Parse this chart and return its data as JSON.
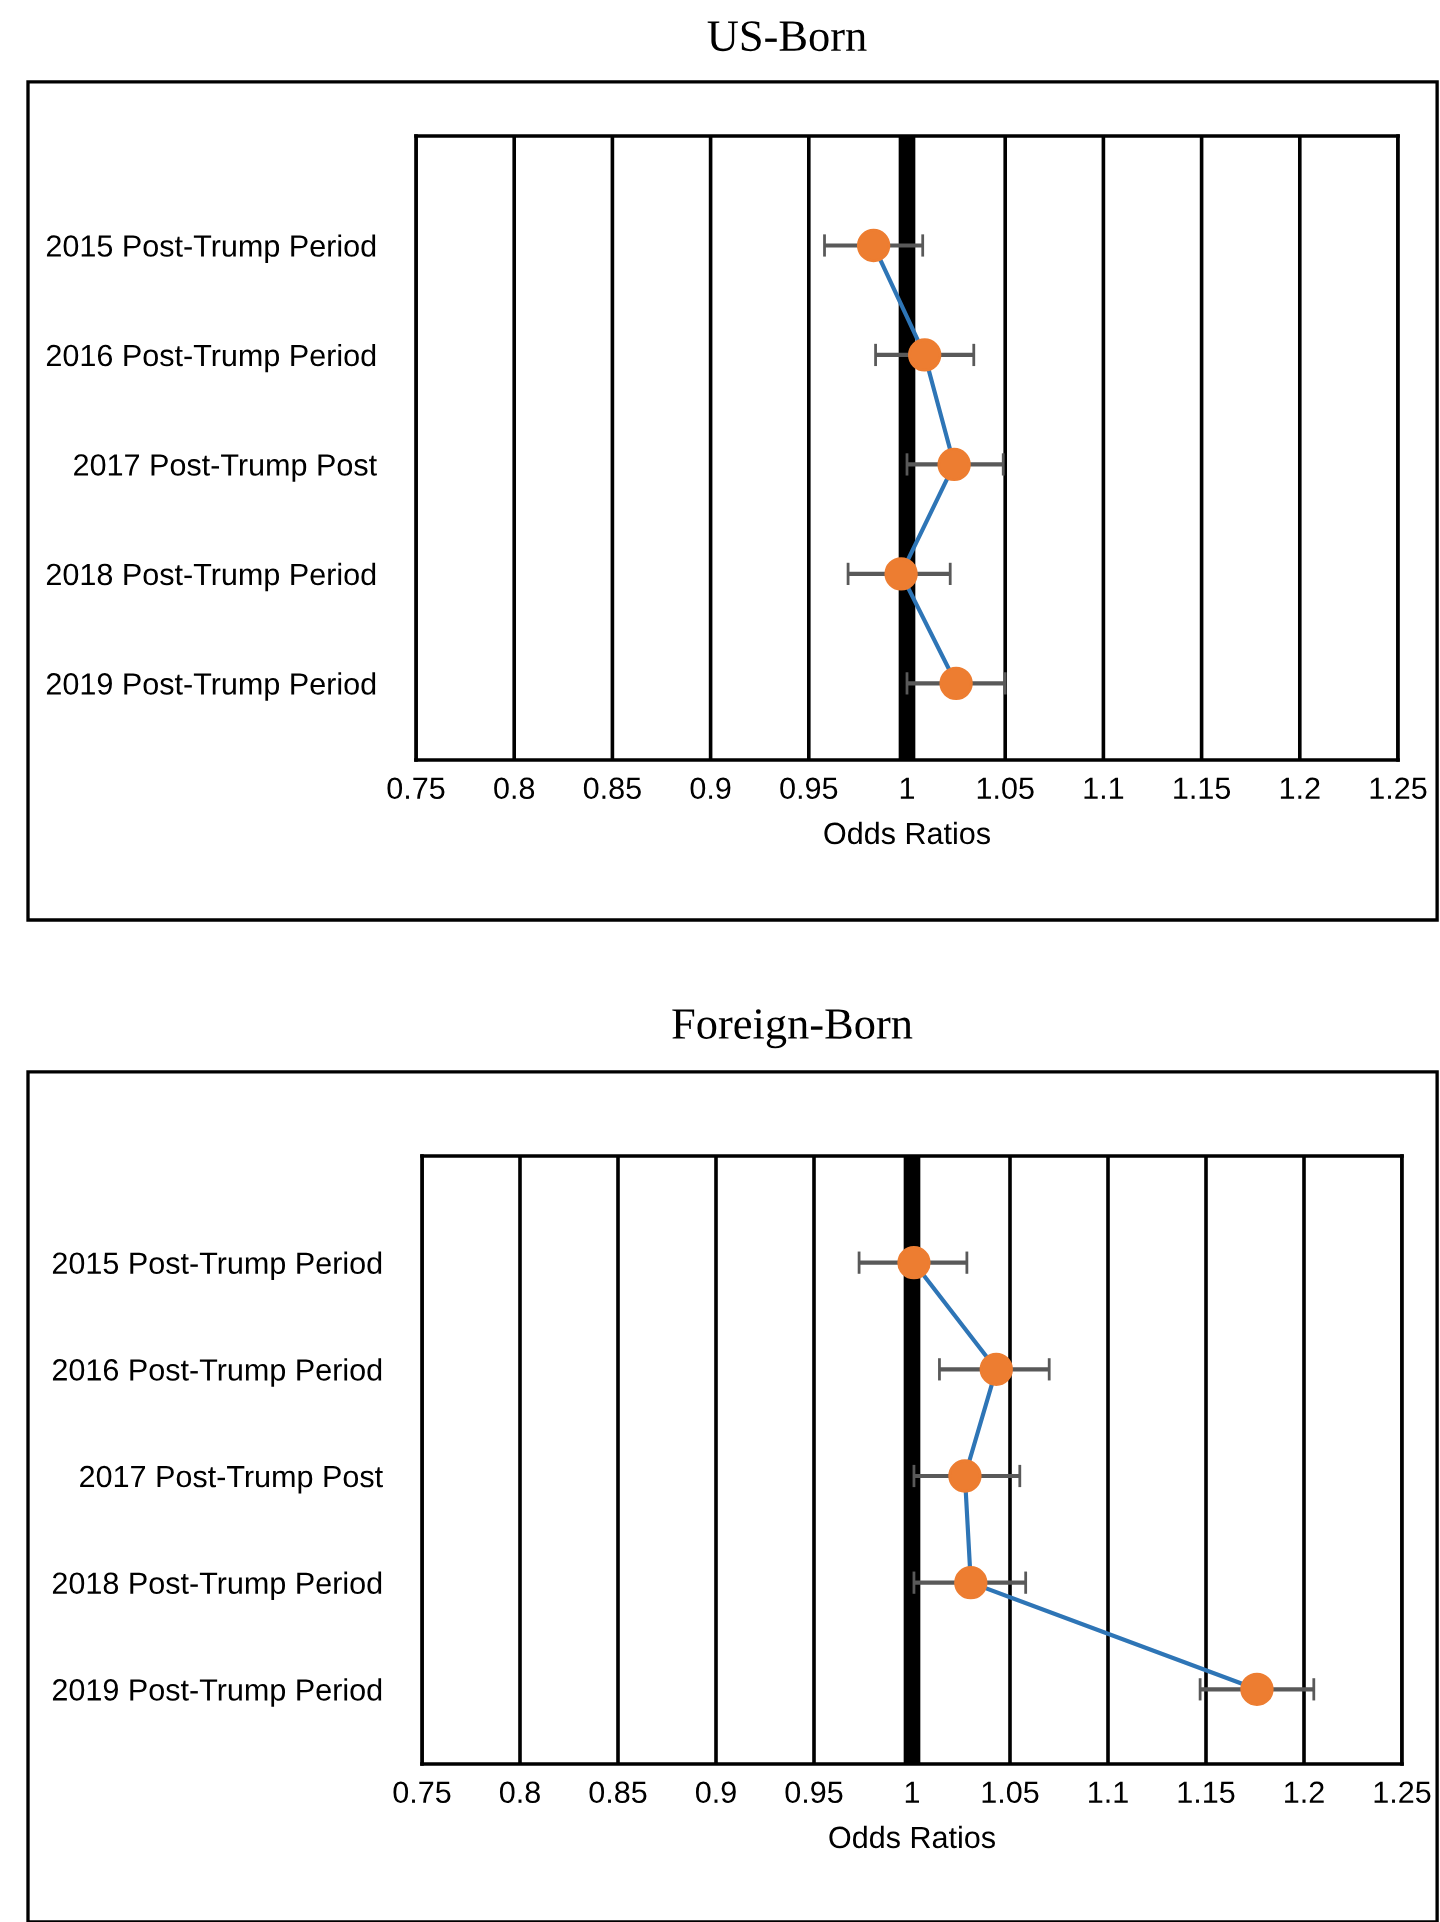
{
  "chart_data": [
    {
      "type": "line",
      "title": "US-Born",
      "xlabel": "Odds Ratios",
      "orientation": "horizontal",
      "categories": [
        "2015 Post-Trump Period",
        "2016 Post-Trump Period",
        "2017 Post-Trump Post",
        "2018 Post-Trump Period",
        "2019 Post-Trump Period"
      ],
      "series": [
        {
          "color": "#2e75b6",
          "colors": [
            "#ed7d31",
            "#ed7d31",
            "#ed7d31",
            "#ed7d31",
            "#ed7d31"
          ],
          "values": [
            0.983,
            1.009,
            1.024,
            0.997,
            1.025
          ],
          "errors": [
            [
              0.958,
              1.008
            ],
            [
              0.984,
              1.034
            ],
            [
              1.0,
              1.049
            ],
            [
              0.97,
              1.022
            ],
            [
              1.0,
              1.05
            ]
          ]
        }
      ],
      "xlim": [
        0.75,
        1.25
      ],
      "xticks": [
        0.75,
        0.8,
        0.85,
        0.9,
        0.95,
        1,
        1.05,
        1.1,
        1.15,
        1.2,
        1.25
      ],
      "grid": "x",
      "marker": "circle",
      "ref_lines": [
        {
          "axis": "x",
          "value": 1,
          "color": "#000000"
        }
      ]
    },
    {
      "type": "line",
      "title": "Foreign-Born",
      "xlabel": "Odds Ratios",
      "orientation": "horizontal",
      "categories": [
        "2015 Post-Trump Period",
        "2016 Post-Trump Period",
        "2017 Post-Trump Post",
        "2018 Post-Trump Period",
        "2019 Post-Trump Period"
      ],
      "series": [
        {
          "color": "#2e75b6",
          "colors": [
            "#ed7d31",
            "#ed7d31",
            "#ed7d31",
            "#ed7d31",
            "#ed7d31"
          ],
          "values": [
            1.001,
            1.043,
            1.027,
            1.03,
            1.176
          ],
          "errors": [
            [
              0.973,
              1.028
            ],
            [
              1.014,
              1.07
            ],
            [
              1.001,
              1.055
            ],
            [
              1.001,
              1.058
            ],
            [
              1.147,
              1.205
            ]
          ]
        }
      ],
      "xlim": [
        0.75,
        1.25
      ],
      "xticks": [
        0.75,
        0.8,
        0.85,
        0.9,
        0.95,
        1,
        1.05,
        1.1,
        1.15,
        1.2,
        1.25
      ],
      "grid": "x",
      "marker": "circle",
      "ref_lines": [
        {
          "axis": "x",
          "value": 1,
          "color": "#000000"
        }
      ]
    }
  ]
}
